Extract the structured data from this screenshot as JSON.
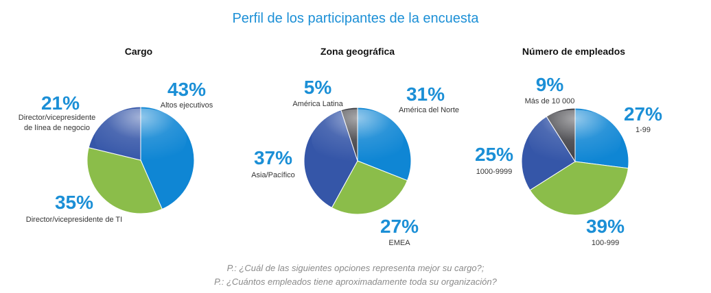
{
  "title": "Perfil de los participantes de la encuesta",
  "footnotes": [
    "P.: ¿Cuál de las siguientes opciones representa mejor su cargo?;",
    "P.: ¿Cuántos empleados tiene aproximadamente toda su organización?"
  ],
  "chart_data": [
    {
      "type": "pie",
      "title": "Cargo",
      "unit": "%",
      "slices": [
        {
          "label": "Altos ejecutivos",
          "value": 43,
          "value_label": "43%",
          "color": "#0f86d4"
        },
        {
          "label": "Director/vicepresidente de TI",
          "value": 35,
          "value_label": "35%",
          "color": "#8bbd4a"
        },
        {
          "label": "Director/vicepresidente de línea de negocio",
          "value": 21,
          "value_label": "21%",
          "color": "#3556a8"
        }
      ]
    },
    {
      "type": "pie",
      "title": "Zona geográfica",
      "unit": "%",
      "slices": [
        {
          "label": "América del Norte",
          "value": 31,
          "value_label": "31%",
          "color": "#0f86d4"
        },
        {
          "label": "EMEA",
          "value": 27,
          "value_label": "27%",
          "color": "#8bbd4a"
        },
        {
          "label": "Asia/Pacífico",
          "value": 37,
          "value_label": "37%",
          "color": "#3556a8"
        },
        {
          "label": "América Latina",
          "value": 5,
          "value_label": "5%",
          "color": "#3f3f44"
        }
      ]
    },
    {
      "type": "pie",
      "title": "Número de empleados",
      "unit": "%",
      "slices": [
        {
          "label": "1-99",
          "value": 27,
          "value_label": "27%",
          "color": "#0f86d4"
        },
        {
          "label": "100-999",
          "value": 39,
          "value_label": "39%",
          "color": "#8bbd4a"
        },
        {
          "label": "1000-9999",
          "value": 25,
          "value_label": "25%",
          "color": "#3556a8"
        },
        {
          "label": "Más de 10 000",
          "value": 9,
          "value_label": "9%",
          "color": "#3f3f44"
        }
      ]
    }
  ]
}
